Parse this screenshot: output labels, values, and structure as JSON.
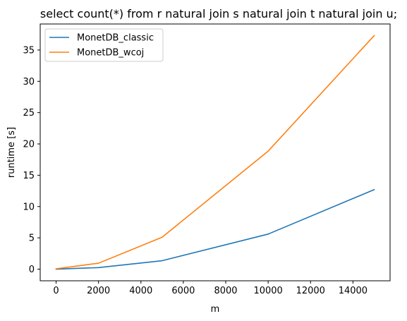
{
  "chart_data": {
    "type": "line",
    "title": "select count(*) from r natural join s natural join t natural join u;",
    "xlabel": "m",
    "ylabel": "runtime [s]",
    "x": [
      0,
      2000,
      5000,
      10000,
      15000
    ],
    "series": [
      {
        "name": "MonetDB_classic",
        "color": "#1f77b4",
        "values": [
          0.0,
          0.25,
          1.35,
          5.6,
          12.7
        ]
      },
      {
        "name": "MonetDB_wcoj",
        "color": "#ff7f0e",
        "values": [
          0.05,
          0.95,
          5.1,
          18.85,
          37.3
        ]
      }
    ],
    "xlim": [
      -750,
      15750
    ],
    "ylim": [
      -1.86,
      39.16
    ],
    "xticks": [
      0,
      2000,
      4000,
      6000,
      8000,
      10000,
      12000,
      14000
    ],
    "yticks": [
      0,
      5,
      10,
      15,
      20,
      25,
      30,
      35
    ],
    "grid": false,
    "legend": "top-left"
  }
}
